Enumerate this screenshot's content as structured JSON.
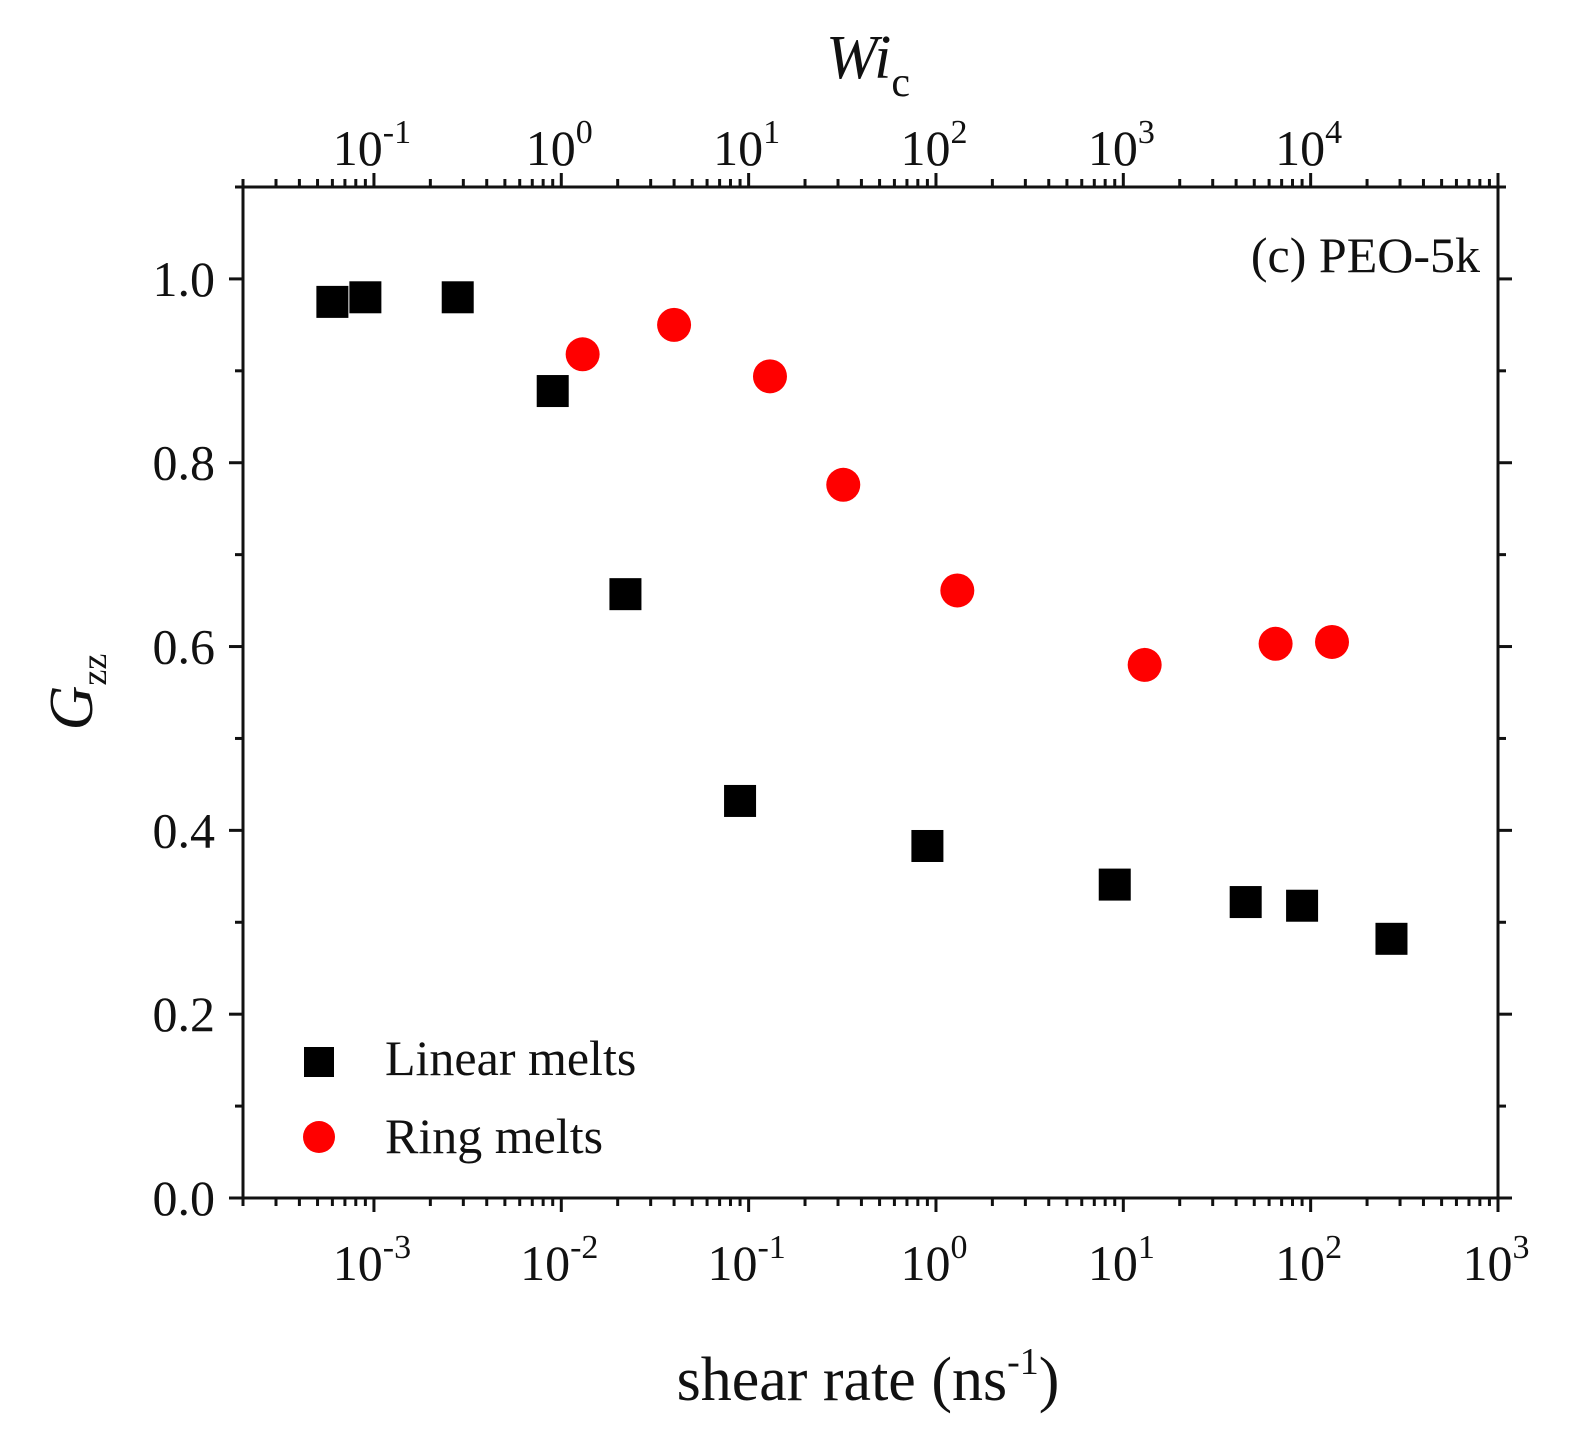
{
  "chart_data": {
    "type": "scatter",
    "title": "",
    "panel_label": "(c) PEO-5k",
    "xlabel": "shear rate (ns",
    "xlabel_exp": "-1",
    "xlabel_close": ")",
    "ylabel": "G",
    "ylabel_sub": "zz",
    "top_label": "Wi",
    "top_label_sub": "c",
    "xscale": "log",
    "xlim": [
      0.0002,
      1000
    ],
    "ylim": [
      0.0,
      1.1
    ],
    "yticks": [
      "0.0",
      "0.2",
      "0.4",
      "0.6",
      "0.8",
      "1.0"
    ],
    "xticks_base": "10",
    "xticks_exp": [
      "-3",
      "-2",
      "-1",
      "0",
      "1",
      "2",
      "3"
    ],
    "top_ticks_base": "10",
    "top_ticks_exp": [
      "-1",
      "0",
      "1",
      "2",
      "3",
      "4"
    ],
    "top_axis_factor": 100,
    "legend_position": "bottom-left",
    "series": [
      {
        "name": "Linear melts",
        "marker": "square",
        "color": "#000000",
        "x": [
          0.0006,
          0.0009,
          0.0028,
          0.009,
          0.022,
          0.09,
          0.9,
          9,
          45,
          90,
          270
        ],
        "y": [
          0.975,
          0.98,
          0.98,
          0.878,
          0.657,
          0.432,
          0.383,
          0.341,
          0.322,
          0.318,
          0.282
        ]
      },
      {
        "name": "Ring melts",
        "marker": "circle",
        "color": "#ff0000",
        "x": [
          0.013,
          0.04,
          0.13,
          0.32,
          1.3,
          13,
          65,
          130
        ],
        "y": [
          0.918,
          0.95,
          0.894,
          0.776,
          0.661,
          0.58,
          0.603,
          0.605
        ]
      }
    ]
  }
}
